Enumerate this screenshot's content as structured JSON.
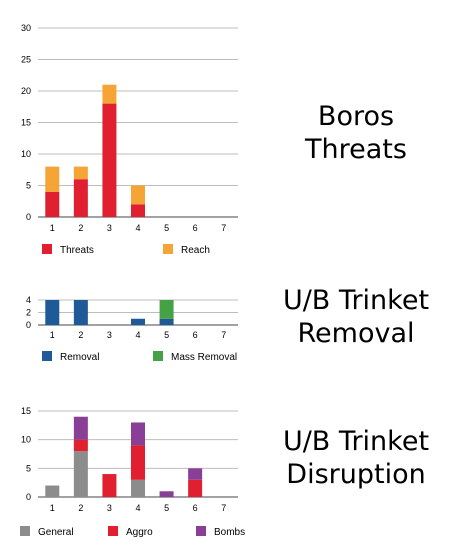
{
  "titles": [
    {
      "line1": "Boros",
      "line2": "Threats"
    },
    {
      "line1": "U/B Trinket",
      "line2": "Removal"
    },
    {
      "line1": "U/B Trinket",
      "line2": "Disruption"
    }
  ],
  "chart_data": [
    {
      "type": "bar",
      "stacked": true,
      "categories": [
        "1",
        "2",
        "3",
        "4",
        "5",
        "6",
        "7"
      ],
      "ylim": [
        0,
        30
      ],
      "yticks": [
        0,
        5,
        10,
        15,
        20,
        25,
        30
      ],
      "grid": true,
      "legend": "bottom",
      "series": [
        {
          "name": "Threats",
          "color": "#e02030",
          "values": [
            4,
            6,
            18,
            2,
            0,
            0,
            0
          ]
        },
        {
          "name": "Reach",
          "color": "#f4a535",
          "values": [
            4,
            2,
            3,
            3,
            0,
            0,
            0
          ]
        }
      ]
    },
    {
      "type": "bar",
      "stacked": true,
      "categories": [
        "1",
        "2",
        "3",
        "4",
        "5",
        "6",
        "7"
      ],
      "ylim": [
        0,
        4
      ],
      "yticks": [
        0,
        2,
        4
      ],
      "grid": true,
      "legend": "bottom",
      "series": [
        {
          "name": "Removal",
          "color": "#1e5a98",
          "values": [
            4,
            4,
            0,
            1,
            1,
            0,
            0
          ]
        },
        {
          "name": "Mass Removal",
          "color": "#46a046",
          "values": [
            0,
            0,
            0,
            0,
            3,
            0,
            0
          ]
        }
      ]
    },
    {
      "type": "bar",
      "stacked": true,
      "categories": [
        "1",
        "2",
        "3",
        "4",
        "5",
        "6",
        "7"
      ],
      "ylim": [
        0,
        15
      ],
      "yticks": [
        0,
        5,
        10,
        15
      ],
      "grid": true,
      "legend": "bottom",
      "series": [
        {
          "name": "General",
          "color": "#8c8c8c",
          "values": [
            2,
            8,
            0,
            3,
            0,
            0,
            0
          ]
        },
        {
          "name": "Aggro",
          "color": "#e02030",
          "values": [
            0,
            2,
            4,
            6,
            0,
            3,
            0
          ]
        },
        {
          "name": "Bombs",
          "color": "#8a3f96",
          "values": [
            0,
            4,
            0,
            4,
            1,
            2,
            0
          ]
        }
      ]
    }
  ]
}
